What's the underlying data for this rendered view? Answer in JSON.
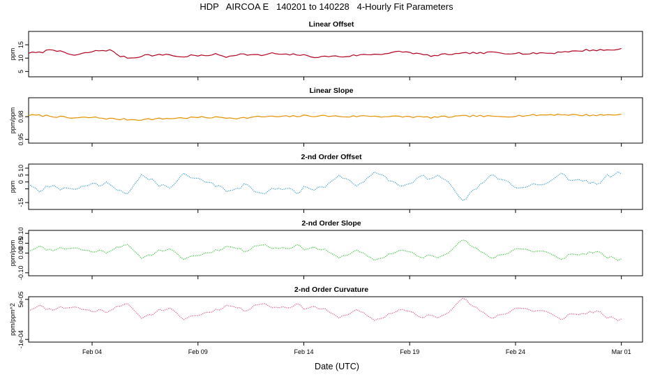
{
  "title": "HDP   AIRCOA E   140201 to 140228   4-Hourly Fit Parameters",
  "xlabel": "Date (UTC)",
  "x_axis": {
    "range": [
      "2014-02-01",
      "2014-03-02"
    ],
    "ticks": [
      {
        "date": "2014-02-04",
        "label": "Feb 04"
      },
      {
        "date": "2014-02-09",
        "label": "Feb 09"
      },
      {
        "date": "2014-02-14",
        "label": "Feb 14"
      },
      {
        "date": "2014-02-19",
        "label": "Feb 19"
      },
      {
        "date": "2014-02-24",
        "label": "Feb 24"
      },
      {
        "date": "2014-03-01",
        "label": "Mar 01"
      }
    ]
  },
  "chart_data": [
    {
      "type": "line",
      "title": "Linear Offset",
      "ylabel": "ppm",
      "ylim": [
        3,
        20
      ],
      "yticks": [
        5,
        10,
        15
      ],
      "ytick_labels": [
        "5",
        "10",
        "15"
      ],
      "color": "#b2001e",
      "line_style": "solid",
      "x_start": "2014-02-01T00:00",
      "x_end": "2014-03-01T00:00",
      "x_step_hours": 4,
      "keypoints": [
        12,
        12,
        13.5,
        12,
        11,
        12,
        12.8,
        13,
        10.5,
        10,
        11.2,
        11,
        11.5,
        10.3,
        11,
        10.8,
        11.5,
        10.5,
        11.5,
        11.3,
        11,
        11.8,
        11.2,
        11.4,
        10.8,
        10.3,
        10.8,
        10.5,
        11,
        11.3,
        11.5,
        11.8,
        12.5,
        12,
        11.2,
        10.8,
        11.5,
        11.5,
        12,
        11.8,
        12.2,
        11.8,
        12,
        11.5,
        12,
        11.8,
        12.5,
        12.5,
        13,
        13,
        13,
        13.5
      ],
      "noise_amplitude": 0.35
    },
    {
      "type": "line",
      "title": "Linear Slope",
      "ylabel": "ppm/ppm",
      "ylim": [
        0.945,
        1.005
      ],
      "yticks": [
        0.95,
        0.98
      ],
      "ytick_labels": [
        "0.95",
        "0.98"
      ],
      "color": "#e69000",
      "line_style": "solid",
      "x_start": "2014-02-01T00:00",
      "x_end": "2014-03-01T00:00",
      "x_step_hours": 4,
      "keypoints": [
        0.982,
        0.981,
        0.978,
        0.979,
        0.977,
        0.976,
        0.977,
        0.978,
        0.979,
        0.979,
        0.978,
        0.98,
        0.98,
        0.981,
        0.981,
        0.98,
        0.981,
        0.98,
        0.98,
        0.979,
        0.98,
        0.981,
        0.98,
        0.981,
        0.982,
        0.983,
        0.982,
        0.982,
        0.983
      ],
      "noise_amplitude": 0.0012
    },
    {
      "type": "line",
      "title": "2-nd Order Offset",
      "ylabel": "ppm",
      "ylim": [
        -20,
        13
      ],
      "yticks": [
        -15,
        -5,
        0,
        5,
        10
      ],
      "ytick_labels": [
        "-15",
        "",
        "0",
        "5",
        "10"
      ],
      "color": "#1e90c8",
      "line_style": "dotted",
      "x_start": "2014-02-01T00:00",
      "x_end": "2014-03-01T00:00",
      "x_step_hours": 4,
      "amplitude": 7,
      "seed": 11
    },
    {
      "type": "line",
      "title": "2-nd Order Slope",
      "ylabel": "ppm/ppm",
      "ylim": [
        -0.115,
        0.115
      ],
      "yticks": [
        -0.1,
        0.0,
        0.05,
        0.1
      ],
      "ytick_labels": [
        "-0.10",
        "0.00",
        "0.05",
        "0.10"
      ],
      "color": "#22c022",
      "line_style": "dotted",
      "x_start": "2014-02-01T00:00",
      "x_end": "2014-03-01T00:00",
      "x_step_hours": 4,
      "amplitude": 0.035,
      "seed": 11,
      "invert": true
    },
    {
      "type": "line",
      "title": "2-nd Order Curvature",
      "ylabel": "ppm/ppm^2",
      "ylim": [
        -0.00011,
        6e-05
      ],
      "yticks": [
        -0.0001,
        5e-05
      ],
      "ytick_labels": [
        "-1e-04",
        "5e-05"
      ],
      "color": "#e0407a",
      "line_style": "dotted",
      "x_start": "2014-02-01T00:00",
      "x_end": "2014-03-01T00:00",
      "x_step_hours": 4,
      "amplitude": 2.8e-05,
      "seed": 11,
      "invert": true
    }
  ]
}
